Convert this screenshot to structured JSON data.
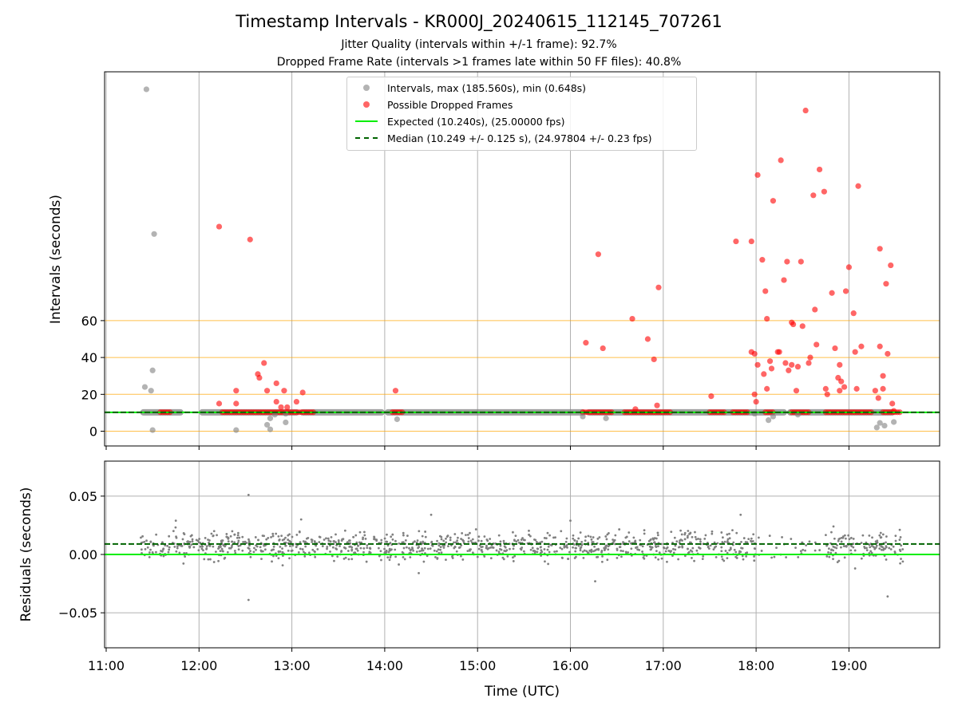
{
  "figure": {
    "title": "Timestamp Intervals - KR000J_20240615_112145_707261",
    "subtitle_1": "Jitter Quality (intervals within +/-1 frame): 92.7%",
    "subtitle_2": "Dropped Frame Rate (intervals >1 frames late within 50 FF files): 40.8%"
  },
  "legend": {
    "intervals": "Intervals, max (185.560s), min (0.648s)",
    "dropped": "Possible Dropped Frames",
    "expected": "Expected (10.240s), (25.00000 fps)",
    "median": "Median (10.249 +/- 0.125 s), (24.97804 +/- 0.23 fps)"
  },
  "colors": {
    "interval_points": "#808080",
    "dropped_points": "#ff0000",
    "expected_line": "#00ee00",
    "median_line": "#006400",
    "threshold_lines": "#ffa500",
    "grid": "#b0b0b0"
  },
  "chart_data": [
    {
      "type": "scatter",
      "panel": "top",
      "xlabel": "",
      "ylabel": "Intervals (seconds)",
      "x_range": [
        "11:00",
        "20:00"
      ],
      "y_range": [
        -8,
        195
      ],
      "yticks": [
        "0",
        "20",
        "40",
        "60"
      ],
      "horizontal_lines": [
        {
          "name": "Expected",
          "y": 10.24,
          "style": "solid",
          "color": "#00ee00"
        },
        {
          "name": "Median",
          "y": 10.249,
          "style": "dashed",
          "color": "#006400"
        },
        {
          "y": 0,
          "color": "#ffa500"
        },
        {
          "y": 20,
          "color": "#ffa500"
        },
        {
          "y": 40,
          "color": "#ffa500"
        },
        {
          "y": 60,
          "color": "#ffa500"
        }
      ],
      "normal_band": {
        "y": 10.24,
        "segments": [
          [
            "11:22",
            "11:50"
          ],
          [
            "12:00",
            "13:05"
          ],
          [
            "13:05",
            "14:00"
          ],
          [
            "14:00",
            "16:10"
          ],
          [
            "16:10",
            "18:20"
          ],
          [
            "18:20",
            "19:30"
          ]
        ]
      },
      "series": [
        {
          "name": "Intervals, max (185.560s), min (0.648s)",
          "color": "#808080",
          "points": [
            [
              "11:26",
              185.5
            ],
            [
              "11:31",
              107.0
            ],
            [
              "11:30",
              33.0
            ],
            [
              "11:25",
              24.0
            ],
            [
              "11:29",
              22.0
            ],
            [
              "11:30",
              0.6
            ],
            [
              "12:24",
              0.6
            ],
            [
              "12:46",
              1.0
            ],
            [
              "12:44",
              3.5
            ],
            [
              "12:56",
              4.8
            ],
            [
              "12:46",
              7.0
            ],
            [
              "12:49",
              9.0
            ],
            [
              "12:56",
              9.5
            ],
            [
              "14:08",
              6.5
            ],
            [
              "16:08",
              8.0
            ],
            [
              "16:23",
              7.0
            ],
            [
              "18:08",
              6.0
            ],
            [
              "18:11",
              8.0
            ],
            [
              "19:18",
              2.0
            ],
            [
              "19:20",
              4.5
            ],
            [
              "19:23",
              3.0
            ],
            [
              "19:29",
              5.0
            ],
            [
              "18:27",
              9.0
            ],
            [
              "17:59",
              9.5
            ]
          ]
        },
        {
          "name": "Possible Dropped Frames",
          "color": "#ff0000",
          "points": [
            [
              "12:13",
              111.0
            ],
            [
              "12:33",
              104.0
            ],
            [
              "12:13",
              15.0
            ],
            [
              "12:24",
              22.0
            ],
            [
              "12:24",
              15.0
            ],
            [
              "12:38",
              31.0
            ],
            [
              "12:39",
              29.0
            ],
            [
              "12:42",
              37.0
            ],
            [
              "12:44",
              22.0
            ],
            [
              "12:50",
              26.0
            ],
            [
              "12:50",
              16.0
            ],
            [
              "12:53",
              13.0
            ],
            [
              "12:55",
              22.0
            ],
            [
              "12:57",
              13.0
            ],
            [
              "13:03",
              16.0
            ],
            [
              "13:07",
              21.0
            ],
            [
              "14:07",
              22.0
            ],
            [
              "16:10",
              48.0
            ],
            [
              "16:18",
              96.0
            ],
            [
              "16:21",
              45.0
            ],
            [
              "16:40",
              61.0
            ],
            [
              "16:42",
              12.0
            ],
            [
              "16:50",
              50.0
            ],
            [
              "16:54",
              39.0
            ],
            [
              "16:56",
              14.0
            ],
            [
              "16:57",
              78.0
            ],
            [
              "17:31",
              19.0
            ],
            [
              "17:47",
              103.0
            ],
            [
              "17:57",
              103.0
            ],
            [
              "17:57",
              43.0
            ],
            [
              "17:59",
              42.0
            ],
            [
              "17:59",
              20.0
            ],
            [
              "18:00",
              16.0
            ],
            [
              "18:01",
              139.0
            ],
            [
              "18:01",
              36.0
            ],
            [
              "18:04",
              93.0
            ],
            [
              "18:05",
              31.0
            ],
            [
              "18:06",
              76.0
            ],
            [
              "18:07",
              23.0
            ],
            [
              "18:07",
              61.0
            ],
            [
              "18:09",
              38.0
            ],
            [
              "18:10",
              34.0
            ],
            [
              "18:11",
              125.0
            ],
            [
              "18:14",
              43.0
            ],
            [
              "18:15",
              43.0
            ],
            [
              "18:16",
              147.0
            ],
            [
              "18:18",
              82.0
            ],
            [
              "18:19",
              37.0
            ],
            [
              "18:20",
              92.0
            ],
            [
              "18:21",
              33.0
            ],
            [
              "18:23",
              36.0
            ],
            [
              "18:23",
              59.0
            ],
            [
              "18:24",
              58.0
            ],
            [
              "18:26",
              22.0
            ],
            [
              "18:27",
              35.0
            ],
            [
              "18:29",
              92.0
            ],
            [
              "18:30",
              57.0
            ],
            [
              "18:32",
              174.0
            ],
            [
              "18:34",
              37.0
            ],
            [
              "18:35",
              40.0
            ],
            [
              "18:37",
              128.0
            ],
            [
              "18:38",
              66.0
            ],
            [
              "18:39",
              47.0
            ],
            [
              "18:41",
              142.0
            ],
            [
              "18:44",
              130.0
            ],
            [
              "18:45",
              23.0
            ],
            [
              "18:46",
              20.0
            ],
            [
              "18:49",
              75.0
            ],
            [
              "18:51",
              45.0
            ],
            [
              "18:53",
              29.0
            ],
            [
              "18:54",
              22.0
            ],
            [
              "18:54",
              36.0
            ],
            [
              "18:55",
              27.0
            ],
            [
              "18:57",
              24.0
            ],
            [
              "18:58",
              76.0
            ],
            [
              "19:00",
              89.0
            ],
            [
              "19:03",
              64.0
            ],
            [
              "19:04",
              43.0
            ],
            [
              "19:05",
              23.0
            ],
            [
              "19:06",
              133.0
            ],
            [
              "19:08",
              46.0
            ],
            [
              "19:17",
              22.0
            ],
            [
              "19:19",
              18.0
            ],
            [
              "19:20",
              46.0
            ],
            [
              "19:20",
              99.0
            ],
            [
              "19:22",
              23.0
            ],
            [
              "19:22",
              30.0
            ],
            [
              "19:24",
              80.0
            ],
            [
              "19:25",
              42.0
            ],
            [
              "19:27",
              90.0
            ],
            [
              "19:28",
              15.0
            ],
            [
              "19:29",
              11.0
            ]
          ]
        }
      ]
    },
    {
      "type": "scatter",
      "panel": "bottom",
      "xlabel": "Time (UTC)",
      "ylabel": "Residuals (seconds)",
      "x_range": [
        "11:00",
        "20:00"
      ],
      "y_range": [
        -0.08,
        0.08
      ],
      "xticks": [
        "11:00",
        "12:00",
        "13:00",
        "14:00",
        "15:00",
        "16:00",
        "17:00",
        "18:00",
        "19:00"
      ],
      "yticks": [
        "0.05",
        "0.00",
        "−0.05"
      ],
      "horizontal_lines": [
        {
          "name": "Expected",
          "y": 0.0,
          "style": "solid",
          "color": "#00ee00"
        },
        {
          "name": "Median",
          "y": 0.009,
          "style": "dashed",
          "color": "#006400"
        }
      ],
      "residual_cloud": {
        "center": 0.007,
        "spread": 0.006,
        "from": "11:22",
        "to": "19:35"
      },
      "outliers": [
        [
          "12:32",
          0.051
        ],
        [
          "12:32",
          -0.039
        ],
        [
          "19:25",
          -0.036
        ],
        [
          "16:16",
          -0.023
        ],
        [
          "14:30",
          0.034
        ],
        [
          "17:50",
          0.034
        ],
        [
          "16:00",
          0.029
        ],
        [
          "13:06",
          0.03
        ],
        [
          "11:45",
          0.029
        ],
        [
          "18:50",
          0.024
        ],
        [
          "19:04",
          -0.012
        ],
        [
          "14:22",
          -0.016
        ]
      ]
    }
  ]
}
